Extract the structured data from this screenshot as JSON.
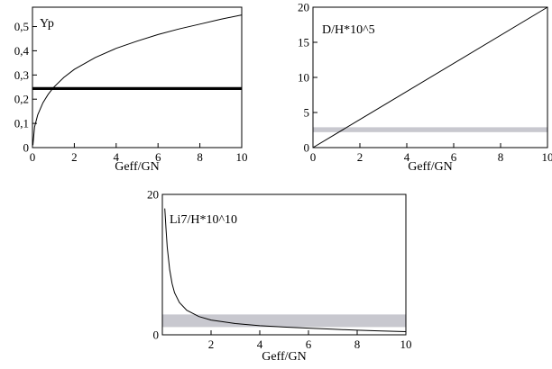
{
  "chart_data": [
    {
      "type": "line",
      "title": "",
      "annotation": "Yp",
      "xlabel": "Geff/GN",
      "ylabel": "",
      "xlim": [
        0,
        10
      ],
      "ylim": [
        0,
        0.58
      ],
      "xticks": [
        0,
        2,
        4,
        6,
        8,
        10
      ],
      "yticks": [
        0,
        0.1,
        0.2,
        0.3,
        0.4,
        0.5
      ],
      "xtick_labels": [
        "0",
        "2",
        "4",
        "6",
        "8",
        "10"
      ],
      "ytick_labels": [
        "0",
        "0,1",
        "0,2",
        "0,3",
        "0,4",
        "0,5"
      ],
      "curve": {
        "x": [
          0.02,
          0.1,
          0.25,
          0.5,
          0.75,
          1,
          1.5,
          2,
          3,
          4,
          5,
          6,
          7,
          8,
          9,
          10
        ],
        "y": [
          0.01,
          0.085,
          0.135,
          0.185,
          0.22,
          0.248,
          0.29,
          0.323,
          0.372,
          0.41,
          0.44,
          0.467,
          0.49,
          0.51,
          0.53,
          0.548
        ]
      },
      "band": {
        "y": [
          0.238,
          0.25
        ],
        "color": "#000000"
      },
      "grid": false
    },
    {
      "type": "line",
      "title": "",
      "annotation": "D/H*10^5",
      "xlabel": "Geff/GN",
      "ylabel": "",
      "xlim": [
        0,
        10
      ],
      "ylim": [
        0,
        20
      ],
      "xticks": [
        0,
        2,
        4,
        6,
        8,
        10
      ],
      "yticks": [
        0,
        5,
        10,
        15,
        20
      ],
      "xtick_labels": [
        "0",
        "2",
        "4",
        "6",
        "8",
        "10"
      ],
      "ytick_labels": [
        "0",
        "5",
        "10",
        "15",
        "20"
      ],
      "curve": {
        "x": [
          0,
          10
        ],
        "y": [
          0,
          20
        ]
      },
      "band": {
        "y": [
          2.2,
          2.9
        ],
        "color": "#9a9aa8"
      },
      "grid": false
    },
    {
      "type": "line",
      "title": "",
      "annotation": "Li7/H*10^10",
      "xlabel": "Geff/GN",
      "ylabel": "",
      "xlim": [
        0,
        10
      ],
      "ylim": [
        0,
        20
      ],
      "xticks": [
        2,
        4,
        6,
        8,
        10
      ],
      "yticks": [
        0,
        20
      ],
      "xtick_labels": [
        "2",
        "4",
        "6",
        "8",
        "10"
      ],
      "ytick_labels": [
        "0",
        "20"
      ],
      "curve": {
        "x": [
          0.1,
          0.15,
          0.2,
          0.3,
          0.4,
          0.5,
          0.7,
          1,
          1.5,
          2,
          3,
          4,
          5,
          6,
          7,
          8,
          9,
          10
        ],
        "y": [
          18.0,
          15.0,
          12.5,
          9.3,
          7.3,
          6.0,
          4.6,
          3.5,
          2.6,
          2.1,
          1.6,
          1.3,
          1.1,
          0.95,
          0.8,
          0.65,
          0.55,
          0.45
        ]
      },
      "band": {
        "y": [
          1.1,
          2.9
        ],
        "color": "#9a9aa8"
      },
      "grid": false
    }
  ]
}
